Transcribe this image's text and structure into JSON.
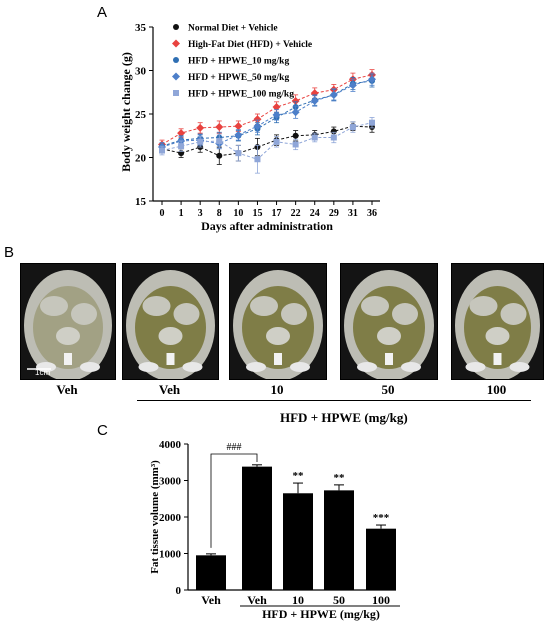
{
  "panels": {
    "a": "A",
    "b": "B",
    "c": "C"
  },
  "chart_data": [
    {
      "type": "line",
      "ylabel": "Body weight change (g)",
      "xlabel": "Days after administration",
      "x": [
        0,
        1,
        3,
        8,
        10,
        15,
        17,
        22,
        24,
        29,
        31,
        36
      ],
      "x_tick_labels": [
        "0",
        "1",
        "3",
        "8",
        "10",
        "15",
        "17",
        "22",
        "24",
        "29",
        "31",
        "36"
      ],
      "ylim": [
        15,
        35
      ],
      "y_ticks": [
        15,
        20,
        25,
        30,
        35
      ],
      "legend_position": "top-left",
      "series": [
        {
          "name": "Normal Diet + Vehicle",
          "color": "#111111",
          "marker": "circle",
          "values": [
            21.0,
            20.5,
            21.2,
            20.2,
            20.5,
            21.2,
            22.0,
            22.5,
            22.6,
            23.0,
            23.6,
            23.5
          ],
          "errors": [
            0.4,
            0.5,
            0.6,
            1.0,
            0.9,
            1.0,
            0.6,
            0.6,
            0.5,
            0.5,
            0.5,
            0.6
          ]
        },
        {
          "name": "High-Fat Diet (HFD) + Vehicle",
          "color": "#e8423f",
          "marker": "diamond",
          "values": [
            21.5,
            22.8,
            23.4,
            23.5,
            23.6,
            24.4,
            25.8,
            26.5,
            27.4,
            27.8,
            29.0,
            29.5
          ],
          "errors": [
            0.5,
            0.5,
            0.6,
            0.7,
            0.6,
            0.6,
            0.6,
            0.7,
            0.6,
            0.6,
            0.7,
            0.6
          ]
        },
        {
          "name": "HFD + HPWE_10 mg/kg",
          "color": "#2f6fb3",
          "marker": "circle",
          "values": [
            21.3,
            22.0,
            22.2,
            22.3,
            22.5,
            23.3,
            24.6,
            25.8,
            26.6,
            27.2,
            28.5,
            28.8
          ],
          "errors": [
            0.4,
            0.5,
            0.5,
            0.6,
            0.6,
            0.7,
            0.6,
            0.6,
            0.6,
            0.6,
            0.7,
            0.7
          ]
        },
        {
          "name": "HFD + HPWE_50 mg/kg",
          "color": "#4d7fc9",
          "marker": "diamond",
          "values": [
            21.2,
            21.9,
            22.0,
            21.6,
            22.6,
            23.6,
            24.9,
            25.2,
            26.5,
            27.2,
            28.3,
            29.0
          ],
          "errors": [
            0.5,
            0.5,
            0.6,
            0.6,
            0.6,
            0.7,
            0.6,
            0.7,
            0.6,
            0.7,
            0.7,
            0.7
          ]
        },
        {
          "name": "HFD + HPWE_100 mg/kg",
          "color": "#8fa6d8",
          "marker": "square",
          "values": [
            20.8,
            21.3,
            21.8,
            21.9,
            20.5,
            19.8,
            21.8,
            21.5,
            22.3,
            22.3,
            23.5,
            24.0
          ],
          "errors": [
            0.5,
            0.6,
            0.6,
            0.8,
            0.9,
            1.6,
            0.6,
            0.6,
            0.5,
            0.6,
            0.6,
            0.6
          ]
        }
      ]
    },
    {
      "type": "bar",
      "ylabel": "Fat tissue volume (mm³)",
      "categories": [
        "Veh",
        "Veh",
        "10",
        "50",
        "100"
      ],
      "values": [
        950,
        3380,
        2650,
        2730,
        1680
      ],
      "errors": [
        40,
        50,
        280,
        150,
        100
      ],
      "annotations": [
        "",
        "",
        "**",
        "**",
        "***"
      ],
      "comparison_label": "###",
      "ylim": [
        0,
        4000
      ],
      "y_ticks": [
        0,
        1000,
        2000,
        3000,
        4000
      ],
      "group_label": "HFD + HPWE (mg/kg)"
    }
  ],
  "ct_images": {
    "labels": [
      "Veh",
      "Veh",
      "10",
      "50",
      "100"
    ],
    "scale_bar": "1cm",
    "group_label": "HFD + HPWE (mg/kg)"
  }
}
